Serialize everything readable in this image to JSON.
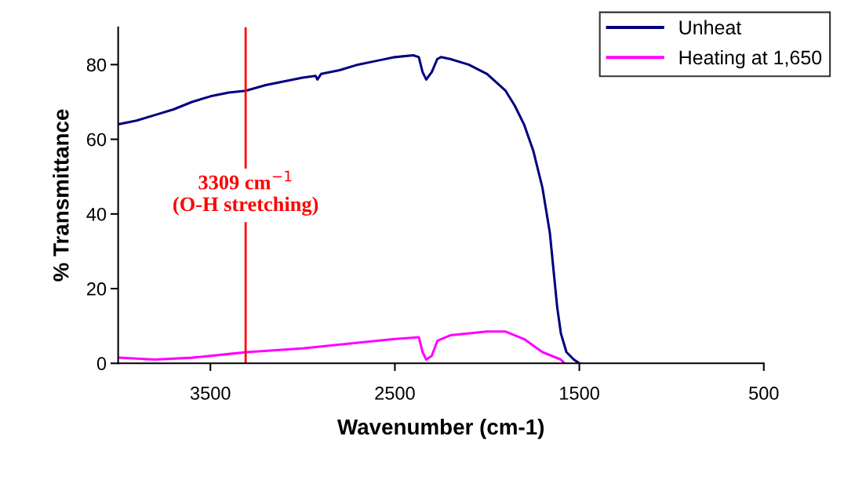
{
  "chart_data": {
    "type": "line",
    "xlabel": "Wavenumber (cm-1)",
    "ylabel": "% Transmittance",
    "xlim": [
      4000,
      500
    ],
    "xticks": [
      3500,
      2500,
      1500,
      500
    ],
    "ylim": [
      0,
      90
    ],
    "yticks": [
      0,
      20,
      40,
      60,
      80
    ],
    "grid": false,
    "legend": "top right",
    "marker": "none",
    "line_style": "solid",
    "series": [
      {
        "name": "Unheat",
        "color": "#000080",
        "x": [
          4000,
          3900,
          3800,
          3700,
          3600,
          3500,
          3400,
          3309,
          3200,
          3100,
          3000,
          2930,
          2920,
          2900,
          2800,
          2700,
          2600,
          2500,
          2400,
          2370,
          2350,
          2330,
          2300,
          2270,
          2250,
          2200,
          2100,
          2000,
          1900,
          1850,
          1800,
          1750,
          1700,
          1660,
          1640,
          1620,
          1600,
          1570,
          1530,
          1500
        ],
        "values": [
          64,
          65,
          66.5,
          68,
          70,
          71.5,
          72.5,
          73,
          74.5,
          75.5,
          76.5,
          77,
          76,
          77.5,
          78.5,
          80,
          81,
          82,
          82.5,
          82,
          78,
          76,
          78,
          81.5,
          82,
          81.5,
          80,
          77.5,
          73,
          69,
          64,
          57,
          47,
          35,
          25,
          15,
          8,
          3,
          1,
          0
        ]
      },
      {
        "name": "Heating at 1,650",
        "color": "#ff00ff",
        "x": [
          4000,
          3800,
          3600,
          3400,
          3300,
          3000,
          2700,
          2500,
          2370,
          2350,
          2330,
          2300,
          2270,
          2200,
          2000,
          1900,
          1800,
          1700,
          1600,
          1580
        ],
        "values": [
          1.5,
          1,
          1.5,
          2.5,
          3,
          4,
          5.5,
          6.5,
          7,
          3,
          1,
          2,
          6,
          7.5,
          8.5,
          8.5,
          6.5,
          3,
          1,
          0
        ]
      }
    ],
    "ref_lines": [
      {
        "axis": "x",
        "value": 3309,
        "label": "3309 cm$^{−1}$\n(O-H stretching)",
        "color": "#ff0000"
      }
    ]
  }
}
